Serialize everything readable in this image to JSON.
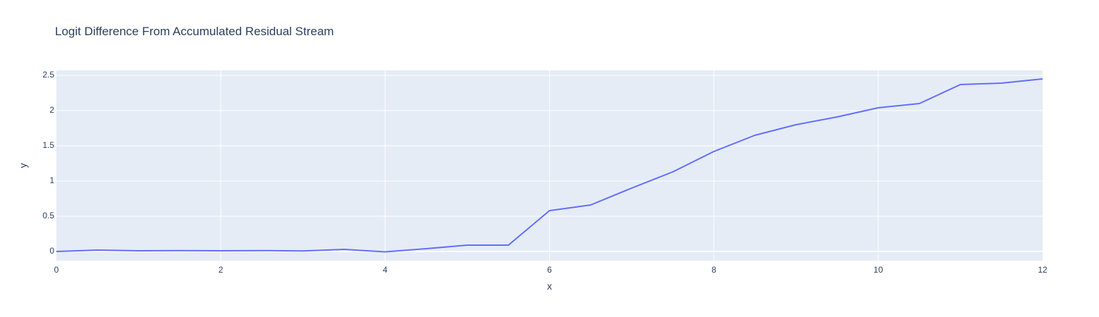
{
  "chart_data": {
    "type": "line",
    "title": "Logit Difference From Accumulated Residual Stream",
    "xlabel": "x",
    "ylabel": "y",
    "xlim": [
      0,
      12
    ],
    "ylim": [
      -0.13,
      2.57
    ],
    "x_ticks": [
      0,
      2,
      4,
      6,
      8,
      10,
      12
    ],
    "x_tick_labels": [
      "0",
      "2",
      "4",
      "6",
      "8",
      "10",
      "12"
    ],
    "y_ticks": [
      0,
      0.5,
      1,
      1.5,
      2,
      2.5
    ],
    "y_tick_labels": [
      "0",
      "0.5",
      "1",
      "1.5",
      "2",
      "2.5"
    ],
    "grid": true,
    "legend": false,
    "colors": {
      "plot_background": "#e5ecf6",
      "grid": "#ffffff",
      "zero_line": "#ffffff",
      "line": "#636efa",
      "text": "#2a3f5f"
    },
    "series": [
      {
        "x": [
          0,
          0.5,
          1,
          1.5,
          2,
          2.5,
          3,
          3.5,
          4,
          4.5,
          5,
          5.5,
          6,
          6.5,
          7,
          7.5,
          8,
          8.5,
          9,
          9.5,
          10,
          10.5,
          11,
          11.5,
          12
        ],
        "y": [
          0.0,
          0.02,
          0.01,
          0.012,
          0.01,
          0.013,
          0.007,
          0.03,
          -0.005,
          0.04,
          0.09,
          0.09,
          0.58,
          0.66,
          0.9,
          1.13,
          1.42,
          1.65,
          1.8,
          1.91,
          2.04,
          2.1,
          2.37,
          2.39,
          2.45
        ]
      }
    ]
  }
}
